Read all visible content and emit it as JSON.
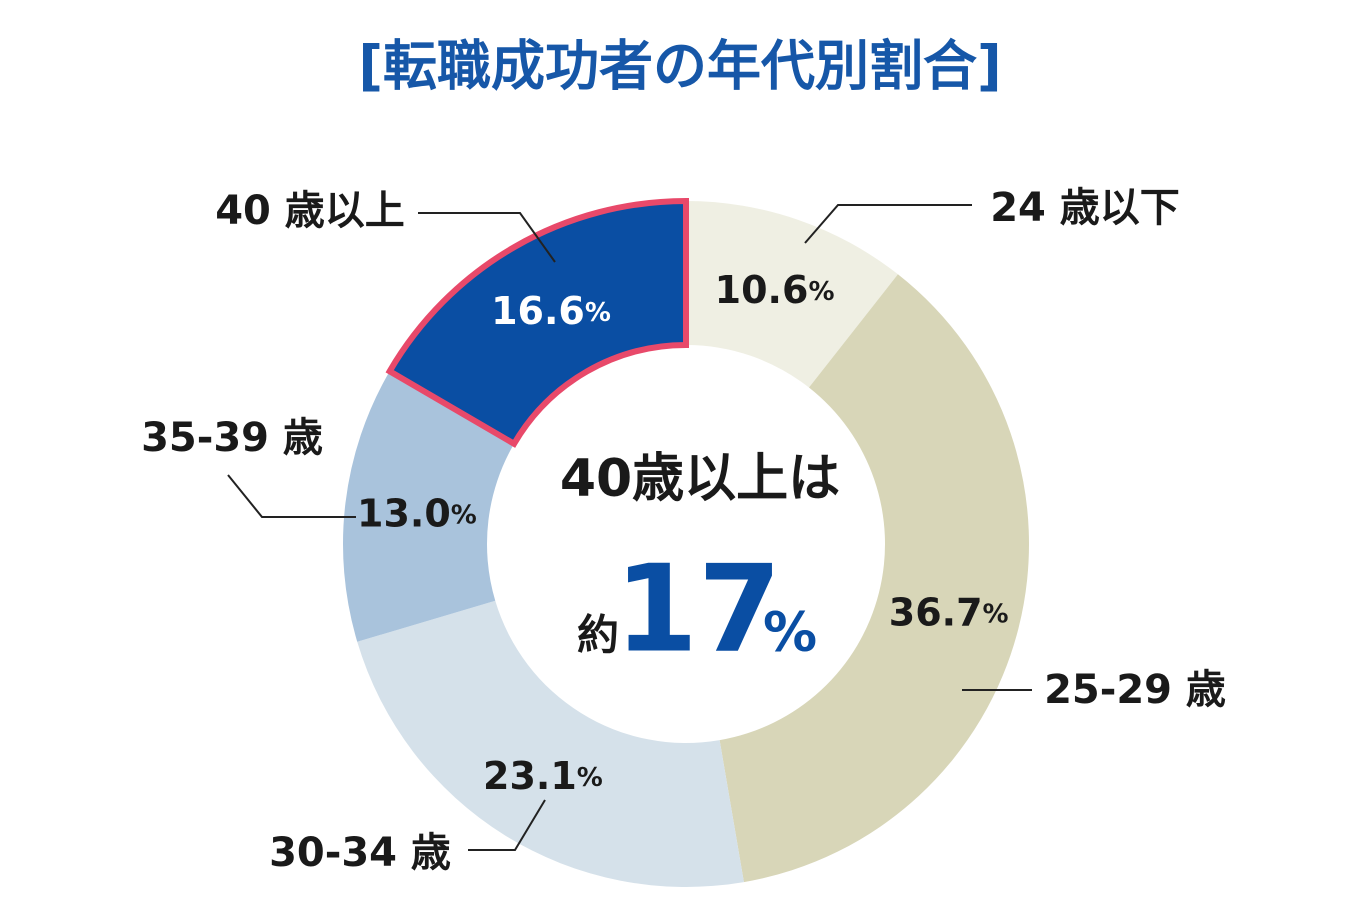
{
  "chart_data": {
    "type": "pie",
    "title": "[転職成功者の年代別割合]",
    "categories": [
      "24 歳以下",
      "25-29 歳",
      "30-34 歳",
      "35-39 歳",
      "40 歳以上"
    ],
    "values": [
      10.6,
      36.7,
      23.1,
      13.0,
      16.6
    ],
    "value_labels": [
      "10.6%",
      "36.7%",
      "23.1%",
      "13.0%",
      "16.6%"
    ],
    "colors": [
      "#efefe3",
      "#d8d6b8",
      "#d5e1ea",
      "#a9c3dc",
      "#0a4ea3"
    ],
    "donut": true,
    "highlight": 4,
    "highlight_color": "#e8496a",
    "center_text": {
      "line1": "40歳以上は",
      "prefix": "約",
      "value": 17,
      "unit": "%"
    }
  }
}
